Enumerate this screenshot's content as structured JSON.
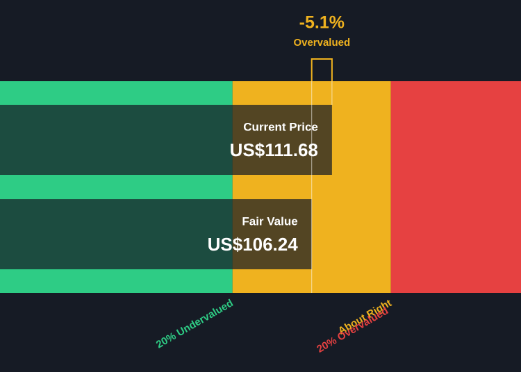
{
  "chart_data": {
    "type": "valuation",
    "categories": [
      "Current Price",
      "Fair Value"
    ],
    "values": [
      111.68,
      106.24
    ],
    "value_labels": [
      "US$111.68",
      "US$106.24"
    ],
    "xlim": [
      22.6,
      162.4
    ],
    "zones": [
      {
        "label": "20% Undervalued",
        "from": 22.6,
        "to": 84.99,
        "color": "#2ecc85"
      },
      {
        "label": "About Right",
        "from": 84.99,
        "to": 127.49,
        "color": "#efb21f"
      },
      {
        "label": "20% Overvalued",
        "from": 127.49,
        "to": 162.4,
        "color": "#e64141"
      }
    ],
    "annotation": {
      "value": "-5.1%",
      "text": "Overvalued",
      "color": "#efb21f"
    },
    "background": "#161b25"
  }
}
